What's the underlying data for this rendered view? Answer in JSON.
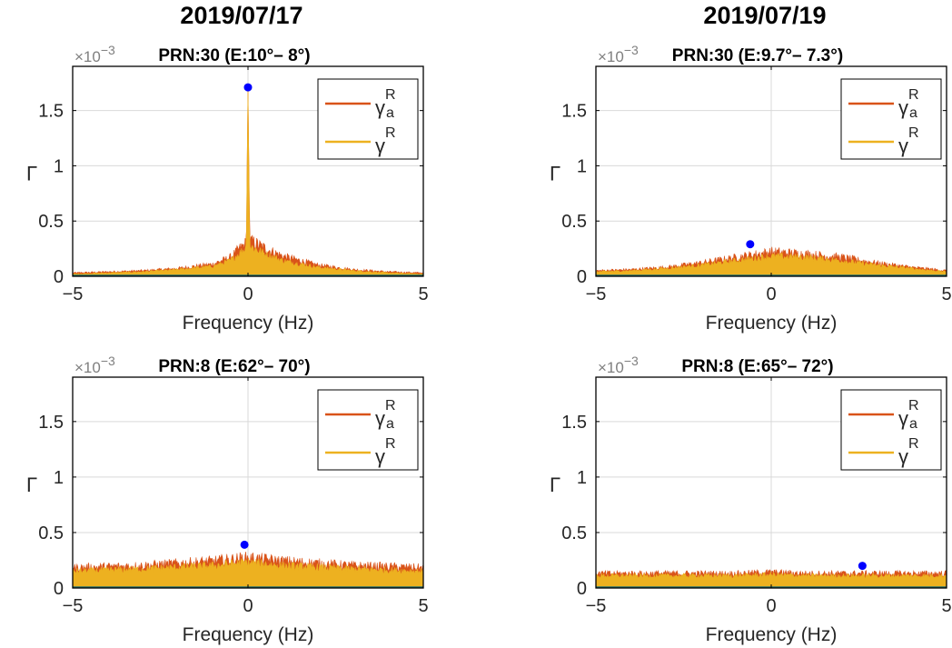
{
  "dates": {
    "left": "2019/07/17",
    "right": "2019/07/19"
  },
  "colors": {
    "gamma_a": "#D95319",
    "gamma": "#EDB120",
    "baseline": "#1F6F6F",
    "peak_marker": "#0000FF",
    "grid": "#D9D9D9",
    "axes": "#000000"
  },
  "chart_data": [
    {
      "type": "area",
      "title": "PRN:30 (E:10°– 8°)",
      "xlabel": "Frequency (Hz)",
      "ylabel": "Γ",
      "exponent_label": "×10",
      "exponent": "-3",
      "xlim": [
        -5,
        5
      ],
      "ylim": [
        0,
        1.9
      ],
      "xticks": [
        "-5",
        "0",
        "5"
      ],
      "yticks": [
        "0",
        "0.5",
        "1",
        "1.5"
      ],
      "grid": true,
      "legend_position": "top-right",
      "series": [
        {
          "name": "γ_a^R",
          "values_x": [
            -5,
            -4,
            -3,
            -2,
            -1,
            -0.5,
            -0.2,
            -0.05,
            0,
            0.05,
            0.2,
            0.5,
            1,
            2,
            3,
            4,
            5
          ],
          "values_y": [
            0.03,
            0.04,
            0.05,
            0.07,
            0.11,
            0.17,
            0.26,
            0.3,
            1.7,
            0.32,
            0.3,
            0.25,
            0.18,
            0.1,
            0.06,
            0.04,
            0.03
          ]
        },
        {
          "name": "γ^R",
          "values_x": [
            -5,
            -4,
            -3,
            -2,
            -1,
            -0.5,
            -0.2,
            -0.05,
            0,
            0.05,
            0.2,
            0.5,
            1,
            2,
            3,
            4,
            5
          ],
          "values_y": [
            0.02,
            0.03,
            0.04,
            0.06,
            0.09,
            0.14,
            0.22,
            0.26,
            1.7,
            0.27,
            0.25,
            0.2,
            0.14,
            0.08,
            0.05,
            0.03,
            0.02
          ]
        }
      ],
      "peak": {
        "x": 0,
        "y": 1.71
      }
    },
    {
      "type": "area",
      "title": "PRN:30 (E:9.7°– 7.3°)",
      "xlabel": "Frequency (Hz)",
      "ylabel": "Γ",
      "exponent_label": "×10",
      "exponent": "-3",
      "xlim": [
        -5,
        5
      ],
      "ylim": [
        0,
        1.9
      ],
      "xticks": [
        "-5",
        "0",
        "5"
      ],
      "yticks": [
        "0",
        "0.5",
        "1",
        "1.5"
      ],
      "grid": true,
      "legend_position": "top-right",
      "series": [
        {
          "name": "γ_a^R",
          "values_x": [
            -5,
            -4,
            -3,
            -2,
            -1,
            0,
            1,
            2,
            3,
            4,
            5
          ],
          "values_y": [
            0.05,
            0.06,
            0.08,
            0.12,
            0.17,
            0.22,
            0.2,
            0.17,
            0.12,
            0.08,
            0.05
          ]
        },
        {
          "name": "γ^R",
          "values_x": [
            -5,
            -4,
            -3,
            -2,
            -1,
            0,
            1,
            2,
            3,
            4,
            5
          ],
          "values_y": [
            0.04,
            0.05,
            0.07,
            0.1,
            0.14,
            0.18,
            0.17,
            0.14,
            0.1,
            0.07,
            0.04
          ]
        }
      ],
      "peak": {
        "x": -0.6,
        "y": 0.29
      }
    },
    {
      "type": "area",
      "title": "PRN:8 (E:62°– 70°)",
      "xlabel": "Frequency (Hz)",
      "ylabel": "Γ",
      "exponent_label": "×10",
      "exponent": "-3",
      "xlim": [
        -5,
        5
      ],
      "ylim": [
        0,
        1.9
      ],
      "xticks": [
        "-5",
        "0",
        "5"
      ],
      "yticks": [
        "0",
        "0.5",
        "1",
        "1.5"
      ],
      "grid": true,
      "legend_position": "top-right",
      "series": [
        {
          "name": "γ_a^R",
          "values_x": [
            -5,
            -3,
            -1,
            0,
            1,
            3,
            5
          ],
          "values_y": [
            0.18,
            0.2,
            0.24,
            0.27,
            0.24,
            0.2,
            0.18
          ]
        },
        {
          "name": "γ^R",
          "values_x": [
            -5,
            -3,
            -1,
            0,
            1,
            3,
            5
          ],
          "values_y": [
            0.15,
            0.17,
            0.2,
            0.23,
            0.2,
            0.17,
            0.15
          ]
        }
      ],
      "peak": {
        "x": -0.1,
        "y": 0.39
      }
    },
    {
      "type": "area",
      "title": "PRN:8 (E:65°– 72°)",
      "xlabel": "Frequency (Hz)",
      "ylabel": "Γ",
      "exponent_label": "×10",
      "exponent": "-3",
      "xlim": [
        -5,
        5
      ],
      "ylim": [
        0,
        1.9
      ],
      "xticks": [
        "-5",
        "0",
        "5"
      ],
      "yticks": [
        "0",
        "0.5",
        "1",
        "1.5"
      ],
      "grid": true,
      "legend_position": "top-right",
      "series": [
        {
          "name": "γ_a^R",
          "values_x": [
            -5,
            -3,
            -1,
            0,
            1,
            3,
            5
          ],
          "values_y": [
            0.13,
            0.13,
            0.13,
            0.14,
            0.13,
            0.13,
            0.13
          ]
        },
        {
          "name": "γ^R",
          "values_x": [
            -5,
            -3,
            -1,
            0,
            1,
            3,
            5
          ],
          "values_y": [
            0.11,
            0.11,
            0.11,
            0.12,
            0.11,
            0.11,
            0.11
          ]
        }
      ],
      "peak": {
        "x": 2.6,
        "y": 0.2
      }
    }
  ]
}
